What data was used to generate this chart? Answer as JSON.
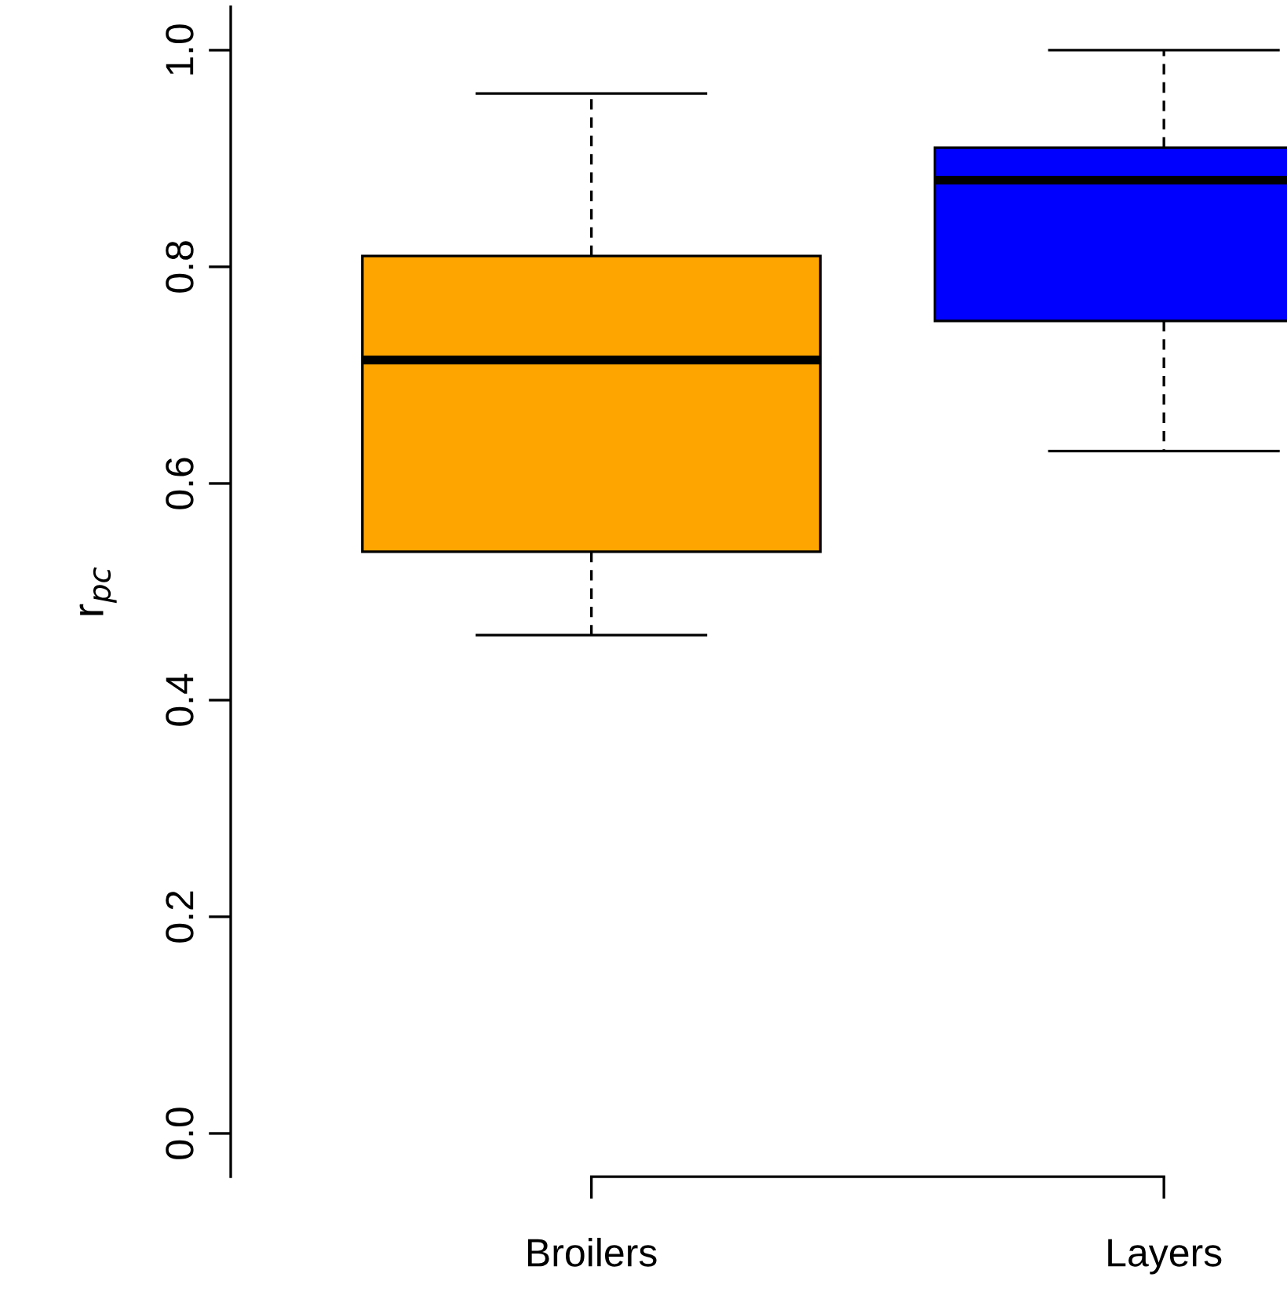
{
  "chart_data": {
    "type": "box",
    "ylabel": "r$_{pc}$",
    "categories": [
      "Broilers",
      "Layers"
    ],
    "colors": [
      "#ffa500",
      "#0000ff"
    ],
    "boxes": [
      {
        "low": 0.46,
        "q1": 0.537,
        "median": 0.714,
        "q3": 0.81,
        "high": 0.96
      },
      {
        "low": 0.63,
        "q1": 0.75,
        "median": 0.88,
        "q3": 0.91,
        "high": 1.0
      }
    ],
    "ylim": [
      -0.04,
      1.04
    ],
    "yticks": [
      {
        "value": 0,
        "label": "0.0"
      },
      {
        "value": 0.2,
        "label": "0.2"
      },
      {
        "value": 0.4,
        "label": "0.4"
      },
      {
        "value": 0.6,
        "label": "0.6"
      },
      {
        "value": 0.8,
        "label": "0.8"
      },
      {
        "value": 1.0,
        "label": "1.0"
      }
    ]
  }
}
